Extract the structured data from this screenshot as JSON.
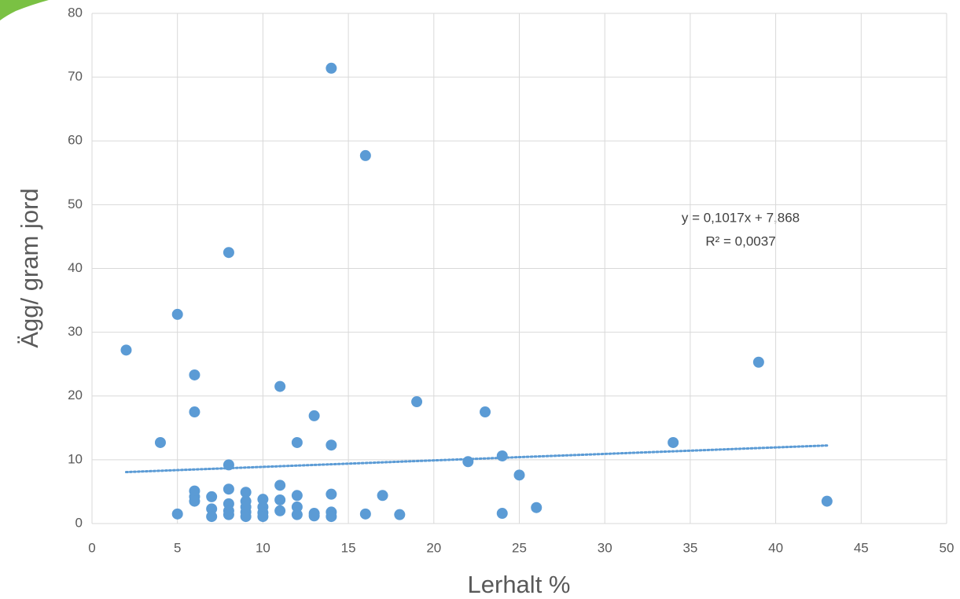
{
  "chart_data": {
    "type": "scatter",
    "x_label": "Lerhalt %",
    "y_label": "Ägg/ gram jord",
    "x": [
      2,
      4,
      5,
      5,
      6,
      6,
      6,
      6,
      6,
      7,
      7,
      7,
      8,
      8,
      8,
      8,
      8,
      8,
      9,
      9,
      9,
      9,
      9,
      10,
      10,
      10,
      10,
      11,
      11,
      11,
      11,
      12,
      12,
      12,
      12,
      13,
      13,
      13,
      14,
      14,
      14,
      14,
      14,
      16,
      16,
      17,
      18,
      19,
      22,
      23,
      24,
      24,
      25,
      26,
      34,
      39,
      43
    ],
    "values": [
      27.2,
      12.7,
      32.8,
      1.5,
      23.3,
      17.5,
      5.1,
      4.2,
      3.5,
      4.2,
      2.3,
      1.1,
      42.5,
      9.2,
      5.4,
      3.1,
      2.0,
      1.4,
      4.9,
      3.5,
      2.6,
      1.8,
      1.1,
      3.8,
      2.6,
      1.7,
      1.1,
      21.5,
      6.0,
      3.7,
      2.0,
      12.7,
      4.4,
      2.6,
      1.4,
      16.9,
      1.6,
      1.2,
      71.4,
      12.3,
      4.6,
      1.8,
      1.1,
      57.7,
      1.5,
      4.4,
      1.4,
      19.1,
      9.7,
      17.5,
      10.6,
      1.6,
      7.6,
      2.5,
      12.7,
      25.3,
      3.5
    ],
    "color": "#5b9bd5",
    "trendline": {
      "equation": "y = 0,1017x + 7,868",
      "r2": "R² = 0,0037",
      "slope": 0.1017,
      "intercept": 7.868
    },
    "xlim": [
      0,
      50
    ],
    "xticks": [
      0,
      5,
      10,
      15,
      20,
      25,
      30,
      35,
      40,
      45,
      50
    ],
    "ylim": [
      0,
      80
    ],
    "yticks": [
      0,
      10,
      20,
      30,
      40,
      50,
      60,
      70,
      80
    ],
    "grid": true
  }
}
